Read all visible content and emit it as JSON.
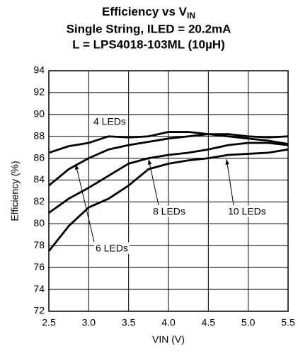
{
  "chart_data": {
    "type": "line",
    "title": "Efficiency vs V",
    "title_subscript": "IN",
    "subtitle": [
      "Single String, ILED = 20.2mA",
      "L = LPS4018-103ML (10µH)"
    ],
    "x_label": "VIN (V)",
    "y_label": "Efficiency (%)",
    "x": [
      2.5,
      2.75,
      3.0,
      3.25,
      3.5,
      3.75,
      4.0,
      4.25,
      4.5,
      4.75,
      5.0,
      5.25,
      5.5
    ],
    "series": [
      {
        "name": "4 LEDs",
        "color": "#000000",
        "values": [
          86.5,
          87.1,
          87.4,
          88.0,
          87.9,
          88.0,
          88.4,
          88.4,
          88.2,
          88.2,
          88.0,
          87.9,
          88.0
        ]
      },
      {
        "name": "6 LEDs",
        "color": "#000000",
        "values": [
          83.5,
          85.0,
          86.0,
          86.8,
          87.2,
          87.5,
          87.8,
          88.0,
          88.2,
          88.0,
          87.8,
          87.6,
          87.3
        ]
      },
      {
        "name": "8 LEDs",
        "color": "#000000",
        "values": [
          81.0,
          82.3,
          83.3,
          84.4,
          85.5,
          86.0,
          86.3,
          86.5,
          86.8,
          87.2,
          87.4,
          87.4,
          87.2
        ]
      },
      {
        "name": "10 LEDs",
        "color": "#000000",
        "values": [
          77.5,
          79.8,
          81.5,
          82.3,
          83.5,
          85.0,
          85.5,
          85.8,
          86.0,
          86.3,
          86.4,
          86.5,
          86.8
        ]
      }
    ],
    "xlim": [
      2.5,
      5.5
    ],
    "xticks": [
      2.5,
      {
        "value": 3,
        "label": "3.0"
      },
      3.5,
      {
        "value": 4,
        "label": "4.0"
      },
      4.5,
      {
        "value": 5,
        "label": "5.0"
      },
      5.5
    ],
    "ylim": [
      72,
      94
    ],
    "yticks": [
      72,
      74,
      76,
      78,
      80,
      82,
      84,
      86,
      88,
      90,
      92,
      94
    ],
    "grid": true
  }
}
